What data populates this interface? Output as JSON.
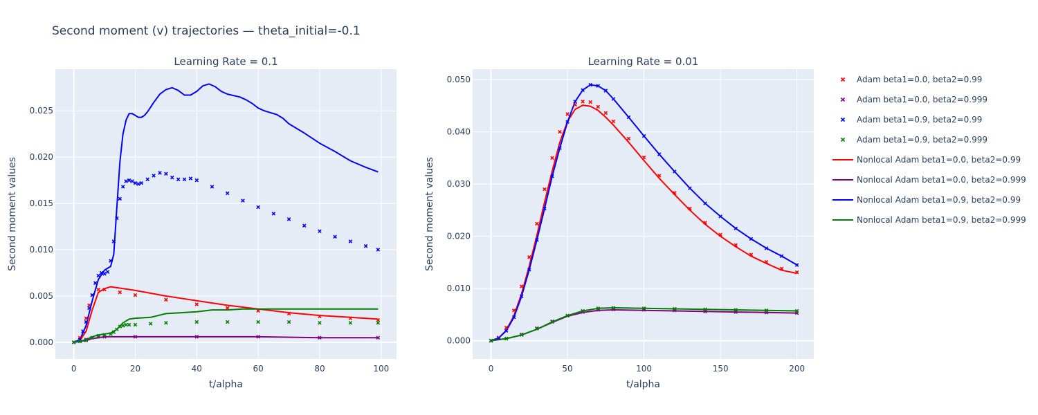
{
  "title": "Second moment (v) trajectories — theta_initial=-0.1",
  "colors": {
    "red": "#ff0000",
    "purple": "#800080",
    "blue": "#0000ff",
    "green": "#008000"
  },
  "legend": [
    {
      "label": "Adam beta1=0.0, beta2=0.99",
      "kind": "markers",
      "color": "#ff0000"
    },
    {
      "label": "Adam beta1=0.0, beta2=0.999",
      "kind": "markers",
      "color": "#800080"
    },
    {
      "label": "Adam beta1=0.9, beta2=0.99",
      "kind": "markers",
      "color": "#0000ff"
    },
    {
      "label": "Adam beta1=0.9, beta2=0.999",
      "kind": "markers",
      "color": "#008000"
    },
    {
      "label": "Nonlocal Adam beta1=0.0, beta2=0.99",
      "kind": "line",
      "color": "#ff0000"
    },
    {
      "label": "Nonlocal Adam beta1=0.0, beta2=0.999",
      "kind": "line",
      "color": "#800080"
    },
    {
      "label": "Nonlocal Adam beta1=0.9, beta2=0.99",
      "kind": "line",
      "color": "#0000ff"
    },
    {
      "label": "Nonlocal Adam beta1=0.9, beta2=0.999",
      "kind": "line",
      "color": "#008000"
    }
  ],
  "chart_data": [
    {
      "type": "line",
      "title": "Learning Rate = 0.1",
      "xlabel": "t/alpha",
      "ylabel": "Second moment values",
      "xlim": [
        -6,
        105
      ],
      "ylim": [
        -0.0018,
        0.0295
      ],
      "xticks": [
        0,
        20,
        40,
        60,
        80,
        100
      ],
      "xtick_labels": [
        "0",
        "20",
        "40",
        "60",
        "80",
        "100"
      ],
      "yticks": [
        0,
        0.005,
        0.01,
        0.015,
        0.02,
        0.025
      ],
      "ytick_labels": [
        "0.000",
        "0.005",
        "0.010",
        "0.015",
        "0.020",
        "0.025"
      ],
      "series": [
        {
          "name": "Adam beta1=0.0, beta2=0.99",
          "kind": "markers",
          "color": "#ff0000",
          "x": [
            0,
            2,
            4,
            5,
            6,
            8,
            10,
            15,
            20,
            30,
            40,
            50,
            60,
            70,
            80,
            90,
            99
          ],
          "y": [
            0,
            0.0005,
            0.0026,
            0.004,
            0.0051,
            0.0057,
            0.0057,
            0.0054,
            0.0051,
            0.0046,
            0.0041,
            0.0037,
            0.0034,
            0.0031,
            0.0028,
            0.0026,
            0.0024
          ]
        },
        {
          "name": "Adam beta1=0.0, beta2=0.999",
          "kind": "markers",
          "color": "#800080",
          "x": [
            0,
            2,
            4,
            6,
            8,
            10,
            20,
            40,
            60,
            80,
            99
          ],
          "y": [
            0,
            0.0001,
            0.0003,
            0.0005,
            0.0006,
            0.0006,
            0.0006,
            0.0006,
            0.0006,
            0.0005,
            0.0005
          ]
        },
        {
          "name": "Adam beta1=0.9, beta2=0.99",
          "kind": "markers",
          "color": "#0000ff",
          "x": [
            0,
            2,
            3,
            4,
            5,
            6,
            7,
            8,
            9,
            10,
            11,
            12,
            13,
            14,
            15,
            16,
            17,
            18,
            19,
            20,
            21,
            22,
            24,
            26,
            28,
            30,
            32,
            34,
            36,
            38,
            40,
            45,
            50,
            55,
            60,
            65,
            70,
            75,
            80,
            85,
            90,
            95,
            99
          ],
          "y": [
            0,
            0.0003,
            0.0012,
            0.0022,
            0.0037,
            0.0051,
            0.0064,
            0.0072,
            0.0075,
            0.0074,
            0.0076,
            0.0088,
            0.0109,
            0.0134,
            0.0155,
            0.0168,
            0.0174,
            0.0175,
            0.0174,
            0.0172,
            0.0171,
            0.0172,
            0.0176,
            0.018,
            0.0183,
            0.0182,
            0.0178,
            0.0176,
            0.0176,
            0.0177,
            0.0175,
            0.0168,
            0.0161,
            0.0153,
            0.0146,
            0.0139,
            0.0133,
            0.0126,
            0.012,
            0.0114,
            0.0109,
            0.0104,
            0.01
          ]
        },
        {
          "name": "Adam beta1=0.9, beta2=0.999",
          "kind": "markers",
          "color": "#008000",
          "x": [
            0,
            2,
            4,
            6,
            8,
            10,
            12,
            13,
            14,
            15,
            16,
            17,
            18,
            20,
            25,
            30,
            40,
            50,
            60,
            70,
            80,
            90,
            99
          ],
          "y": [
            0,
            0.0001,
            0.0002,
            0.0005,
            0.0007,
            0.0008,
            0.0009,
            0.0011,
            0.0014,
            0.0017,
            0.0018,
            0.0019,
            0.0019,
            0.0019,
            0.002,
            0.0021,
            0.0022,
            0.0022,
            0.0022,
            0.0022,
            0.0021,
            0.0021,
            0.0021
          ]
        },
        {
          "name": "Nonlocal Adam beta1=0.0, beta2=0.99",
          "kind": "line",
          "color": "#ff0000",
          "x": [
            0,
            2,
            4,
            6,
            8,
            10,
            12,
            14,
            20,
            30,
            40,
            50,
            60,
            70,
            80,
            90,
            99
          ],
          "y": [
            0,
            0.0002,
            0.0012,
            0.0035,
            0.0054,
            0.0058,
            0.006,
            0.0059,
            0.0056,
            0.005,
            0.0045,
            0.004,
            0.0036,
            0.0032,
            0.0029,
            0.0027,
            0.0025
          ]
        },
        {
          "name": "Nonlocal Adam beta1=0.0, beta2=0.999",
          "kind": "line",
          "color": "#800080",
          "x": [
            0,
            2,
            4,
            6,
            8,
            10,
            20,
            40,
            60,
            80,
            99
          ],
          "y": [
            0,
            0.0001,
            0.0002,
            0.0004,
            0.0005,
            0.0006,
            0.0006,
            0.0006,
            0.0006,
            0.0005,
            0.0005
          ]
        },
        {
          "name": "Nonlocal Adam beta1=0.9, beta2=0.99",
          "kind": "line",
          "color": "#0000ff",
          "x": [
            0,
            2,
            4,
            6,
            8,
            10,
            12,
            13,
            14,
            15,
            16,
            17,
            18,
            19,
            20,
            21,
            22,
            23,
            24,
            25,
            26,
            28,
            30,
            32,
            34,
            36,
            38,
            40,
            42,
            44,
            46,
            48,
            50,
            54,
            56,
            58,
            60,
            62,
            64,
            66,
            68,
            70,
            75,
            80,
            85,
            90,
            95,
            99
          ],
          "y": [
            0,
            0.0003,
            0.0018,
            0.0045,
            0.0068,
            0.0078,
            0.0082,
            0.0095,
            0.0145,
            0.0195,
            0.0225,
            0.024,
            0.0247,
            0.0247,
            0.0245,
            0.0243,
            0.0243,
            0.0245,
            0.0249,
            0.0254,
            0.0259,
            0.0268,
            0.0273,
            0.0275,
            0.0272,
            0.0267,
            0.0267,
            0.0271,
            0.0277,
            0.0279,
            0.0276,
            0.0271,
            0.0268,
            0.0265,
            0.0262,
            0.0258,
            0.0253,
            0.025,
            0.0248,
            0.0246,
            0.0242,
            0.0236,
            0.0226,
            0.0215,
            0.0206,
            0.0196,
            0.0189,
            0.0184
          ]
        },
        {
          "name": "Nonlocal Adam beta1=0.9, beta2=0.999",
          "kind": "line",
          "color": "#008000",
          "x": [
            0,
            2,
            4,
            6,
            8,
            10,
            12,
            14,
            16,
            18,
            20,
            25,
            30,
            35,
            40,
            45,
            50,
            55,
            60,
            70,
            80,
            90,
            99
          ],
          "y": [
            0,
            0.0001,
            0.0003,
            0.0006,
            0.0008,
            0.0009,
            0.001,
            0.0014,
            0.0021,
            0.0025,
            0.0026,
            0.0027,
            0.0031,
            0.0032,
            0.0033,
            0.0035,
            0.0035,
            0.0036,
            0.0036,
            0.0036,
            0.0036,
            0.0036,
            0.0036
          ]
        }
      ]
    },
    {
      "type": "line",
      "title": "Learning Rate = 0.01",
      "xlabel": "t/alpha",
      "ylabel": "Second moment values",
      "xlim": [
        -12,
        211
      ],
      "ylim": [
        -0.0035,
        0.052
      ],
      "xticks": [
        0,
        50,
        100,
        150,
        200
      ],
      "xtick_labels": [
        "0",
        "50",
        "100",
        "150",
        "200"
      ],
      "yticks": [
        0,
        0.01,
        0.02,
        0.03,
        0.04,
        0.05
      ],
      "ytick_labels": [
        "0.000",
        "0.010",
        "0.020",
        "0.030",
        "0.040",
        "0.050"
      ],
      "series": [
        {
          "name": "Adam beta1=0.0, beta2=0.99",
          "kind": "markers",
          "color": "#ff0000",
          "x": [
            0,
            5,
            10,
            15,
            20,
            25,
            30,
            35,
            40,
            45,
            50,
            55,
            60,
            65,
            70,
            75,
            80,
            90,
            100,
            110,
            120,
            130,
            140,
            150,
            160,
            170,
            180,
            190,
            200
          ],
          "y": [
            0,
            0.0006,
            0.0025,
            0.0058,
            0.0104,
            0.016,
            0.0224,
            0.029,
            0.035,
            0.04,
            0.0434,
            0.0452,
            0.0458,
            0.0457,
            0.0448,
            0.0436,
            0.042,
            0.0387,
            0.0351,
            0.0316,
            0.0283,
            0.0253,
            0.0226,
            0.0203,
            0.0183,
            0.0165,
            0.0151,
            0.0138,
            0.0131
          ]
        },
        {
          "name": "Adam beta1=0.0, beta2=0.999",
          "kind": "markers",
          "color": "#800080",
          "x": [
            0,
            10,
            20,
            30,
            40,
            50,
            60,
            70,
            80,
            100,
            120,
            140,
            160,
            180,
            200
          ],
          "y": [
            0,
            0.0004,
            0.0012,
            0.0024,
            0.0037,
            0.0048,
            0.0055,
            0.0059,
            0.006,
            0.0059,
            0.0058,
            0.0056,
            0.0055,
            0.0054,
            0.0053
          ]
        },
        {
          "name": "Adam beta1=0.9, beta2=0.99",
          "kind": "markers",
          "color": "#0000ff",
          "x": [
            0,
            5,
            10,
            15,
            20,
            25,
            30,
            35,
            40,
            45,
            50,
            55,
            60,
            65,
            70,
            75,
            80,
            90,
            100,
            110,
            120,
            130,
            140,
            150,
            160,
            170,
            180,
            190,
            200
          ],
          "y": [
            0,
            0.0005,
            0.0019,
            0.0045,
            0.0085,
            0.0136,
            0.0193,
            0.0253,
            0.0315,
            0.0369,
            0.0419,
            0.0458,
            0.048,
            0.049,
            0.0488,
            0.0479,
            0.0463,
            0.0428,
            0.0392,
            0.0357,
            0.0324,
            0.0292,
            0.0263,
            0.0238,
            0.0215,
            0.0195,
            0.0177,
            0.0162,
            0.0145
          ]
        },
        {
          "name": "Adam beta1=0.9, beta2=0.999",
          "kind": "markers",
          "color": "#008000",
          "x": [
            0,
            10,
            20,
            30,
            40,
            50,
            60,
            70,
            80,
            100,
            120,
            140,
            160,
            180,
            200
          ],
          "y": [
            0,
            0.0004,
            0.0011,
            0.0023,
            0.0036,
            0.0048,
            0.0057,
            0.0062,
            0.0063,
            0.0062,
            0.0061,
            0.006,
            0.0059,
            0.0058,
            0.0057
          ]
        },
        {
          "name": "Nonlocal Adam beta1=0.0, beta2=0.99",
          "kind": "line",
          "color": "#ff0000",
          "x": [
            0,
            5,
            10,
            15,
            20,
            25,
            30,
            35,
            40,
            45,
            50,
            55,
            60,
            65,
            70,
            75,
            80,
            90,
            100,
            110,
            120,
            130,
            140,
            150,
            160,
            170,
            180,
            190,
            200
          ],
          "y": [
            0,
            0.0005,
            0.002,
            0.0048,
            0.009,
            0.0143,
            0.0202,
            0.0265,
            0.0325,
            0.038,
            0.042,
            0.0443,
            0.0451,
            0.0449,
            0.0441,
            0.0428,
            0.0413,
            0.038,
            0.0345,
            0.0311,
            0.028,
            0.025,
            0.0223,
            0.02,
            0.018,
            0.0162,
            0.0148,
            0.0135,
            0.0129
          ]
        },
        {
          "name": "Nonlocal Adam beta1=0.0, beta2=0.999",
          "kind": "line",
          "color": "#800080",
          "x": [
            0,
            10,
            20,
            30,
            40,
            50,
            60,
            70,
            80,
            100,
            120,
            140,
            160,
            180,
            200
          ],
          "y": [
            0,
            0.0004,
            0.0011,
            0.0022,
            0.0035,
            0.0047,
            0.0054,
            0.0058,
            0.0059,
            0.0058,
            0.0057,
            0.0056,
            0.0055,
            0.0054,
            0.0053
          ]
        },
        {
          "name": "Nonlocal Adam beta1=0.9, beta2=0.99",
          "kind": "line",
          "color": "#0000ff",
          "x": [
            0,
            5,
            10,
            15,
            20,
            25,
            30,
            35,
            40,
            45,
            50,
            55,
            60,
            65,
            70,
            75,
            80,
            90,
            100,
            110,
            120,
            130,
            140,
            150,
            160,
            170,
            180,
            190,
            200
          ],
          "y": [
            0,
            0.0005,
            0.0019,
            0.0045,
            0.0085,
            0.0136,
            0.0193,
            0.0253,
            0.0315,
            0.0369,
            0.0419,
            0.0458,
            0.048,
            0.049,
            0.0488,
            0.0479,
            0.0463,
            0.0428,
            0.0392,
            0.0357,
            0.0324,
            0.0292,
            0.0263,
            0.0238,
            0.0215,
            0.0195,
            0.0177,
            0.0162,
            0.0145
          ]
        },
        {
          "name": "Nonlocal Adam beta1=0.9, beta2=0.999",
          "kind": "line",
          "color": "#008000",
          "x": [
            0,
            10,
            20,
            30,
            40,
            50,
            60,
            70,
            80,
            100,
            120,
            140,
            160,
            180,
            200
          ],
          "y": [
            0,
            0.0004,
            0.0011,
            0.0022,
            0.0036,
            0.0048,
            0.0057,
            0.0062,
            0.0063,
            0.0062,
            0.0061,
            0.006,
            0.0059,
            0.0058,
            0.0057
          ]
        }
      ]
    }
  ]
}
